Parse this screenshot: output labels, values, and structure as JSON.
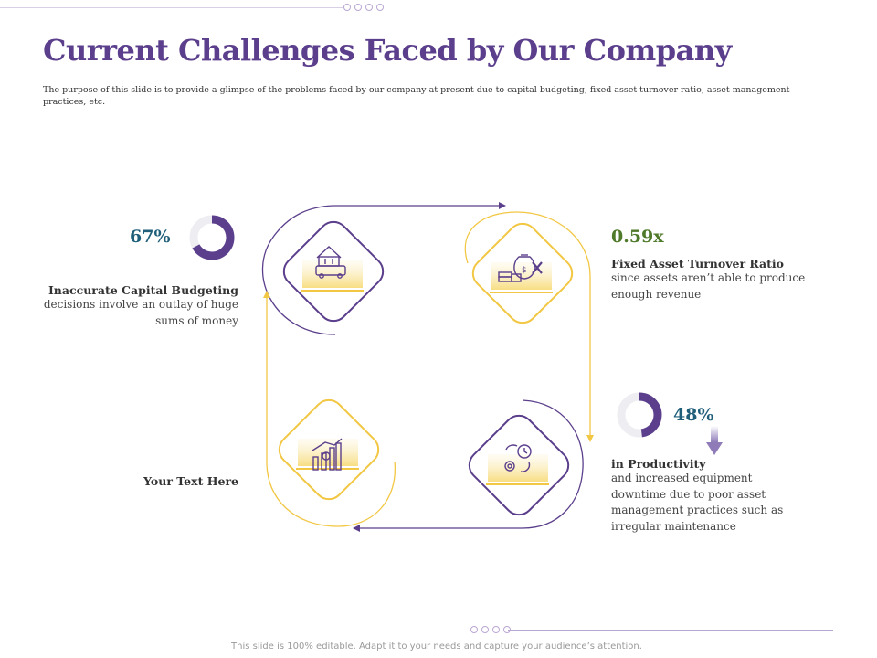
{
  "header": {
    "title": "Current Challenges Faced by Our Company",
    "subtitle": "The purpose of this slide is to provide a glimpse of the problems faced by our company at present due to capital budgeting, fixed asset turnover ratio, asset management practices, etc."
  },
  "items": [
    {
      "stat": "67%",
      "gauge_percent": 67,
      "heading": "Inaccurate Capital Budgeting",
      "description_lines": [
        "decisions involve an outlay of huge",
        "sums of money"
      ],
      "icon": "house-car-icon"
    },
    {
      "stat": "0.59x",
      "heading": "Fixed Asset Turnover Ratio",
      "description_lines": [
        "since assets aren’t able to produce",
        "enough revenue"
      ],
      "icon": "money-bag-cross-icon"
    },
    {
      "stat": "48%",
      "gauge_percent": 48,
      "heading": "in Productivity",
      "description_lines": [
        "and increased equipment",
        "downtime due to poor asset",
        "management practices such as",
        "irregular maintenance"
      ],
      "icon": "gear-clock-icon"
    },
    {
      "heading": "Your Text Here",
      "icon": "growth-chart-icon"
    }
  ],
  "footer": {
    "note": "This slide is 100% editable. Adapt it to your needs and capture your audience’s attention."
  },
  "colors": {
    "purple": "#5b3f8c",
    "yellow": "#f2c744",
    "teal": "#1f5f7a",
    "green": "#4f7a2a",
    "gauge_track": "#eeeeF2"
  }
}
